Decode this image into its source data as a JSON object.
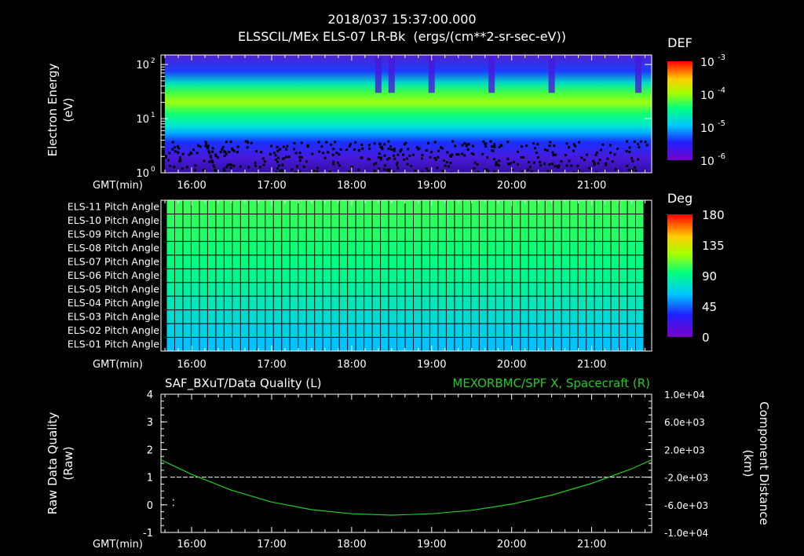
{
  "header": {
    "timestamp": "2018/037 15:37:00.000",
    "title": "ELSSCIL/MEx ELS-07 LR-Bk  (ergs/(cm**2-sr-sec-eV))"
  },
  "colors": {
    "background": "#000000",
    "axis": "#ffffff",
    "spacecraft_line": "#22cc22",
    "quality_line": "#ffffff"
  },
  "time_axis": {
    "label": "GMT(min)",
    "ticks": [
      "16:00",
      "17:00",
      "18:00",
      "19:00",
      "20:00",
      "21:00"
    ],
    "range": [
      "15:37",
      "21:45"
    ]
  },
  "chart_data": [
    {
      "type": "heatmap",
      "ylabel_line1": "Electron Energy",
      "ylabel_line2": "(eV)",
      "yscale": "log",
      "ylim": [
        1,
        150
      ],
      "y_ticks": [
        {
          "base": "10",
          "exp": "2"
        },
        {
          "base": "10",
          "exp": "1"
        },
        {
          "base": "10",
          "exp": "0"
        }
      ],
      "colorbar": {
        "label": "DEF",
        "scale": "log",
        "ticks": [
          {
            "base": "10",
            "exp": "-3"
          },
          {
            "base": "10",
            "exp": "-4"
          },
          {
            "base": "10",
            "exp": "-5"
          },
          {
            "base": "10",
            "exp": "-6"
          }
        ]
      },
      "peak_energy_band_eV": [
        15,
        40
      ],
      "gaps_around_times": [
        "18:20",
        "18:30",
        "19:00",
        "19:45",
        "20:30",
        "21:35"
      ]
    },
    {
      "type": "heatmap",
      "rows": [
        {
          "label": "ELS-11 Pitch Angle",
          "value": 103
        },
        {
          "label": "ELS-10 Pitch Angle",
          "value": 101
        },
        {
          "label": "ELS-09 Pitch Angle",
          "value": 99
        },
        {
          "label": "ELS-08 Pitch Angle",
          "value": 96
        },
        {
          "label": "ELS-07 Pitch Angle",
          "value": 93
        },
        {
          "label": "ELS-06 Pitch Angle",
          "value": 90
        },
        {
          "label": "ELS-05 Pitch Angle",
          "value": 86
        },
        {
          "label": "ELS-04 Pitch Angle",
          "value": 80
        },
        {
          "label": "ELS-03 Pitch Angle",
          "value": 74
        },
        {
          "label": "ELS-02 Pitch Angle",
          "value": 68
        },
        {
          "label": "ELS-01 Pitch Angle",
          "value": 62
        }
      ],
      "colorbar": {
        "label": "Deg",
        "ticks": [
          "180",
          "135",
          "90",
          "45",
          "0"
        ],
        "range": [
          0,
          180
        ]
      }
    },
    {
      "type": "line",
      "title_left": "SAF_BXuT/Data Quality (L)",
      "title_right": "MEXORBMC/SPF X, Spacecraft (R)",
      "ylabel_left_line1": "Raw Data Quality",
      "ylabel_left_line2": "(Raw)",
      "ylabel_right_line1": "Component Distance",
      "ylabel_right_line2": "(km)",
      "left_ticks": [
        "4",
        "3",
        "2",
        "1",
        "0",
        "-1"
      ],
      "left_ylim": [
        -1,
        4
      ],
      "right_ticks": [
        "1.0e+04",
        "6.0e+03",
        "2.0e+03",
        "-2.0e+03",
        "-6.0e+03",
        "-1.0e+04"
      ],
      "right_ylim": [
        -10000,
        10000
      ],
      "series": [
        {
          "name": "SAF_BXuT/Data Quality",
          "axis": "left",
          "x": [
            "15:44",
            "21:45"
          ],
          "y": [
            1,
            1
          ]
        },
        {
          "name": "MEXORBMC/SPF X, Spacecraft",
          "axis": "right",
          "x": [
            "15:37",
            "16:00",
            "16:30",
            "17:00",
            "17:30",
            "18:00",
            "18:30",
            "19:00",
            "19:30",
            "20:00",
            "20:30",
            "21:00",
            "21:30",
            "21:45"
          ],
          "y": [
            500,
            -1600,
            -3900,
            -5600,
            -6700,
            -7300,
            -7500,
            -7300,
            -6800,
            -5900,
            -4600,
            -2900,
            -800,
            500
          ]
        }
      ]
    }
  ]
}
